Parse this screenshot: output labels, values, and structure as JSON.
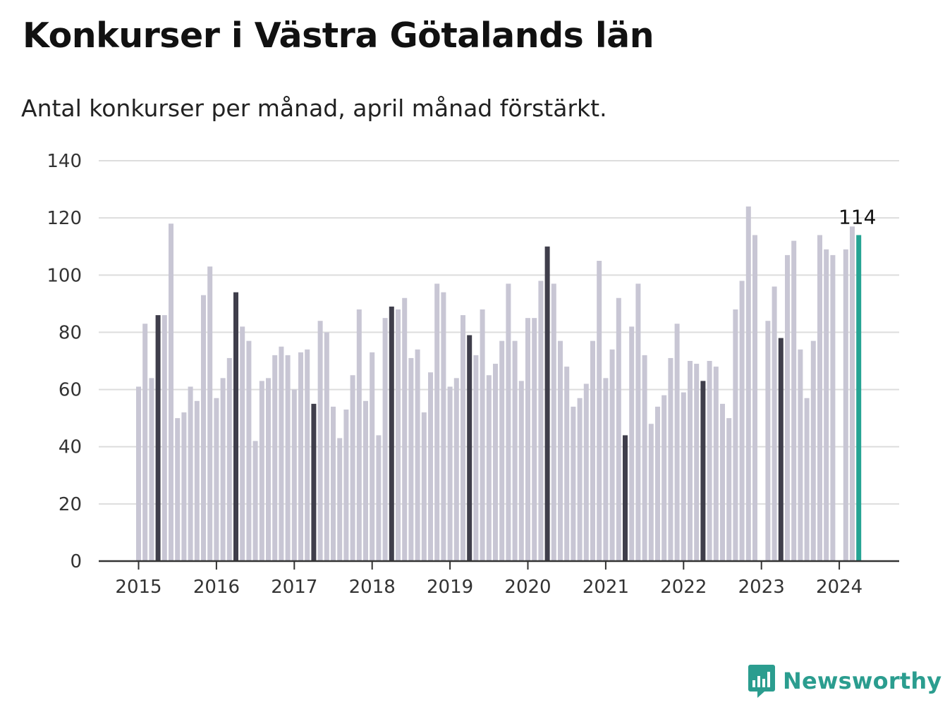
{
  "title": "Konkurser i Västra Götalands län",
  "subtitle": "Antal konkurser per månad, april månad förstärkt.",
  "brand": {
    "name": "Newsworthy",
    "icon": "bar-chart-speech-bubble-icon",
    "color": "#2b9d8f"
  },
  "chart_data": {
    "type": "bar",
    "title": "Konkurser i Västra Götalands län",
    "subtitle": "Antal konkurser per månad, april månad förstärkt.",
    "x_start": "2015-01",
    "x_ticks": [
      "2015",
      "2016",
      "2017",
      "2018",
      "2019",
      "2020",
      "2021",
      "2022",
      "2023",
      "2024"
    ],
    "y_ticks": [
      0,
      20,
      40,
      60,
      80,
      100,
      120,
      140
    ],
    "ylim": [
      0,
      140
    ],
    "grid": true,
    "values": [
      61,
      83,
      64,
      86,
      86,
      118,
      50,
      52,
      61,
      56,
      93,
      103,
      57,
      64,
      71,
      94,
      82,
      77,
      42,
      63,
      64,
      72,
      75,
      72,
      60,
      73,
      74,
      55,
      84,
      80,
      54,
      43,
      53,
      65,
      88,
      56,
      73,
      44,
      85,
      89,
      88,
      92,
      71,
      74,
      52,
      66,
      97,
      94,
      61,
      64,
      86,
      79,
      72,
      88,
      65,
      69,
      77,
      97,
      77,
      63,
      85,
      85,
      98,
      110,
      97,
      77,
      68,
      54,
      57,
      62,
      77,
      105,
      64,
      74,
      92,
      44,
      82,
      97,
      72,
      48,
      54,
      58,
      71,
      83,
      59,
      70,
      69,
      63,
      70,
      68,
      55,
      50,
      88,
      98,
      124,
      114,
      null,
      84,
      96,
      78,
      107,
      112,
      74,
      57,
      77,
      114,
      109,
      107,
      null,
      109,
      117,
      114
    ],
    "highlighted_month": "april",
    "latest_label": "114",
    "colors": {
      "default": "#c8c6d4",
      "april": "#3f3e4b",
      "latest": "#24a393",
      "axis": "#333333",
      "grid": "#dddddd"
    }
  }
}
